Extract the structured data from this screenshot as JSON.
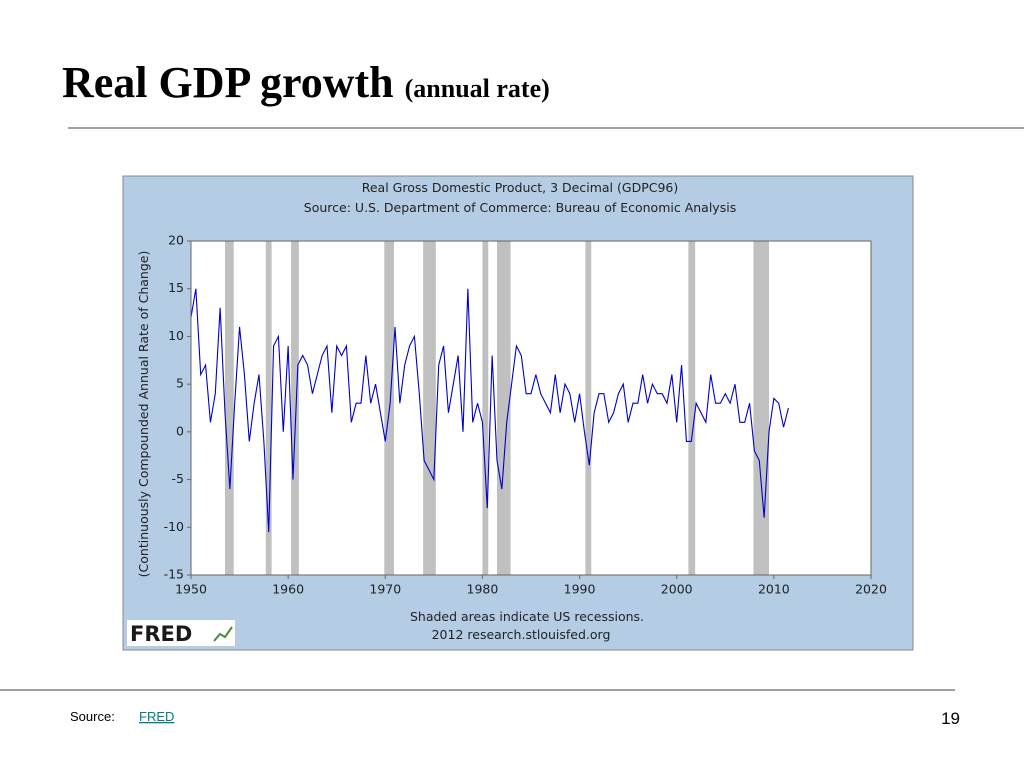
{
  "slide": {
    "title": "Real GDP growth",
    "subtitle": "(annual rate)",
    "source_label": "Source:",
    "source_link": "FRED",
    "page_number": "19"
  },
  "chart_data": {
    "type": "line",
    "title": "Real Gross Domestic Product, 3 Decimal (GDPC96)",
    "subtitle": "Source: U.S. Department of Commerce: Bureau of Economic Analysis",
    "y_label": "(Continuously Compounded Annual Rate of Change)",
    "note": "Shaded areas indicate US recessions.",
    "credit": "2012 research.stlouisfed.org",
    "logo": "FRED",
    "xlim": [
      1950,
      2020
    ],
    "xticks": [
      1950,
      1960,
      1970,
      1980,
      1990,
      2000,
      2010,
      2020
    ],
    "ylim": [
      -15,
      20
    ],
    "yticks": [
      -15,
      -10,
      -5,
      0,
      5,
      10,
      15,
      20
    ],
    "grid": false,
    "recession_color": "#c0c0c0",
    "recessions": [
      [
        1953.5,
        1954.4
      ],
      [
        1957.7,
        1958.3
      ],
      [
        1960.3,
        1961.1
      ],
      [
        1969.9,
        1970.9
      ],
      [
        1973.9,
        1975.2
      ],
      [
        1980.0,
        1980.6
      ],
      [
        1981.5,
        1982.9
      ],
      [
        1990.6,
        1991.2
      ],
      [
        2001.2,
        2001.9
      ],
      [
        2007.9,
        2009.5
      ]
    ],
    "x": [
      1950.0,
      1950.5,
      1951.0,
      1951.5,
      1952.0,
      1952.5,
      1953.0,
      1953.5,
      1954.0,
      1954.5,
      1955.0,
      1955.5,
      1956.0,
      1956.5,
      1957.0,
      1957.5,
      1958.0,
      1958.5,
      1959.0,
      1959.5,
      1960.0,
      1960.5,
      1961.0,
      1961.5,
      1962.0,
      1962.5,
      1963.0,
      1963.5,
      1964.0,
      1964.5,
      1965.0,
      1965.5,
      1966.0,
      1966.5,
      1967.0,
      1967.5,
      1968.0,
      1968.5,
      1969.0,
      1969.5,
      1970.0,
      1970.5,
      1971.0,
      1971.5,
      1972.0,
      1972.5,
      1973.0,
      1973.5,
      1974.0,
      1974.5,
      1975.0,
      1975.5,
      1976.0,
      1976.5,
      1977.0,
      1977.5,
      1978.0,
      1978.5,
      1979.0,
      1979.5,
      1980.0,
      1980.5,
      1981.0,
      1981.5,
      1982.0,
      1982.5,
      1983.0,
      1983.5,
      1984.0,
      1984.5,
      1985.0,
      1985.5,
      1986.0,
      1986.5,
      1987.0,
      1987.5,
      1988.0,
      1988.5,
      1989.0,
      1989.5,
      1990.0,
      1990.5,
      1991.0,
      1991.5,
      1992.0,
      1992.5,
      1993.0,
      1993.5,
      1994.0,
      1994.5,
      1995.0,
      1995.5,
      1996.0,
      1996.5,
      1997.0,
      1997.5,
      1998.0,
      1998.5,
      1999.0,
      1999.5,
      2000.0,
      2000.5,
      2001.0,
      2001.5,
      2002.0,
      2002.5,
      2003.0,
      2003.5,
      2004.0,
      2004.5,
      2005.0,
      2005.5,
      2006.0,
      2006.5,
      2007.0,
      2007.5,
      2008.0,
      2008.5,
      2009.0,
      2009.5,
      2010.0,
      2010.5,
      2011.0,
      2011.5
    ],
    "series": [
      {
        "name": "GDPC96",
        "color": "#0000cc",
        "values": [
          12,
          15,
          6,
          7,
          1,
          4,
          13,
          2,
          -6,
          3,
          11,
          6,
          -1,
          3,
          6,
          -1,
          -10.5,
          9,
          10,
          0,
          9,
          -5,
          7,
          8,
          7,
          4,
          6,
          8,
          9,
          2,
          9,
          8,
          9,
          1,
          3,
          3,
          8,
          3,
          5,
          2,
          -1,
          3,
          11,
          3,
          7,
          9,
          10,
          4,
          -3,
          -4,
          -5,
          7,
          9,
          2,
          5,
          8,
          0,
          15,
          1,
          3,
          1,
          -8,
          8,
          -3,
          -6,
          1,
          5,
          9,
          8,
          4,
          4,
          6,
          4,
          3,
          2,
          6,
          2,
          5,
          4,
          1,
          4,
          0,
          -3.5,
          2,
          4,
          4,
          1,
          2,
          4,
          5,
          1,
          3,
          3,
          6,
          3,
          5,
          4,
          4,
          3,
          6,
          1,
          7,
          -1,
          -1,
          3,
          2,
          1,
          6,
          3,
          3,
          4,
          3,
          5,
          1,
          1,
          3,
          -2,
          -3,
          -9,
          0,
          3.5,
          3,
          0.5,
          2.5
        ]
      }
    ]
  }
}
